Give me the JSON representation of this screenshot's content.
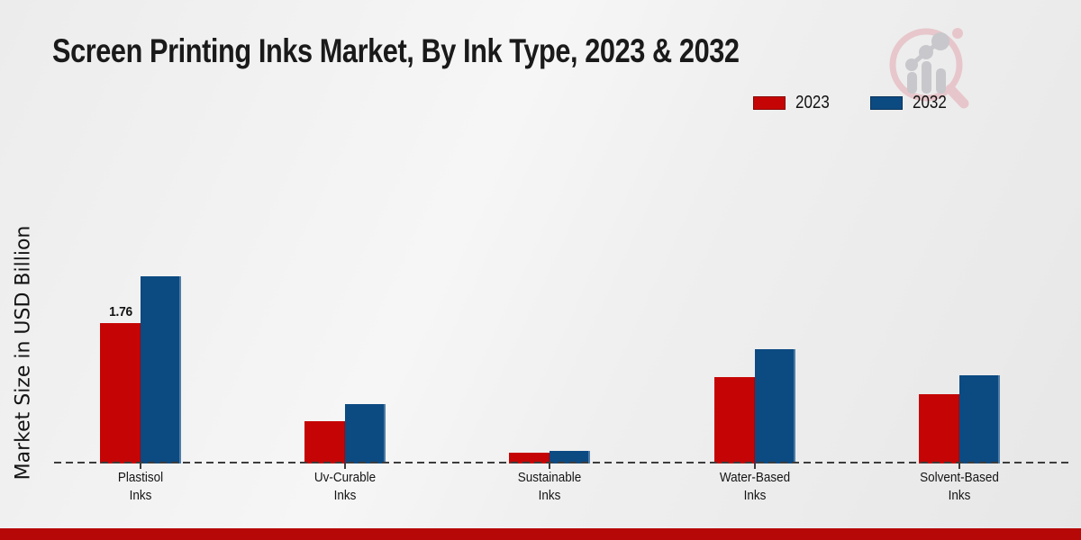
{
  "page": {
    "title": "Screen Printing Inks Market, By Ink Type, 2023 & 2032",
    "watermark": "market-research-future-logo"
  },
  "colors": {
    "series_2023": "#c50505",
    "series_2032": "#0c4a82",
    "footer_bar": "#b70808",
    "baseline": "#3d3d3d",
    "watermark_pink": "#e7c5ca",
    "watermark_gray": "#c6c6cb"
  },
  "legend": {
    "position": "top-right",
    "items": [
      {
        "label": "2023",
        "color": "#c50505"
      },
      {
        "label": "2032",
        "color": "#0c4a82"
      }
    ]
  },
  "chart_data": {
    "type": "bar",
    "title": "Screen Printing Inks Market, By Ink Type, 2023 & 2032",
    "xlabel": "",
    "ylabel": "Market Size in USD Billion",
    "categories": [
      "Plastisol Inks",
      "Uv-Curable Inks",
      "Sustainable Inks",
      "Water-Based Inks",
      "Solvent-Based Inks"
    ],
    "series": [
      {
        "name": "2023",
        "color": "#c50505",
        "values": [
          1.76,
          0.53,
          0.14,
          1.08,
          0.87
        ]
      },
      {
        "name": "2032",
        "color": "#0c4a82",
        "values": [
          2.35,
          0.74,
          0.16,
          1.43,
          1.1
        ]
      }
    ],
    "annotations": [
      {
        "series": "2023",
        "category": "Plastisol Inks",
        "text": "1.76"
      }
    ],
    "ylim": [
      0,
      2.5
    ],
    "grid": false,
    "y_axis_ticks_visible": false,
    "baseline_style": "dashed",
    "legend_position": "top-right"
  }
}
